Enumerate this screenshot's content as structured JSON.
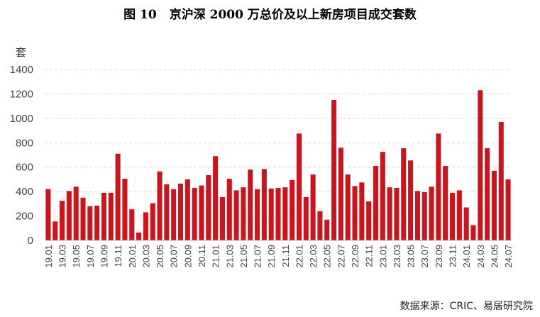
{
  "title": {
    "number": "图 10",
    "text": "京沪深 2000 万总价及以上新房项目成交套数"
  },
  "source": "数据来源：CRIC、易居研究院",
  "colors": {
    "bar": "#c8161e",
    "grid": "#d9d9d9",
    "axis": "#bfbfbf"
  },
  "chart_data": {
    "type": "bar",
    "title": "京沪深 2000 万总价及以上新房项目成交套数",
    "ylabel": "套",
    "xlabel": "",
    "ylim": [
      0,
      1400
    ],
    "yticks": [
      0,
      200,
      400,
      600,
      800,
      1000,
      1200,
      1400
    ],
    "grid": true,
    "legend": "none",
    "categories": [
      "19.01",
      "19.02",
      "19.03",
      "19.04",
      "19.05",
      "19.06",
      "19.07",
      "19.08",
      "19.09",
      "19.10",
      "19.11",
      "19.12",
      "20.01",
      "20.02",
      "20.03",
      "20.04",
      "20.05",
      "20.06",
      "20.07",
      "20.08",
      "20.09",
      "20.10",
      "20.11",
      "20.12",
      "21.01",
      "21.02",
      "21.03",
      "21.04",
      "21.05",
      "21.06",
      "21.07",
      "21.08",
      "21.09",
      "21.10",
      "21.11",
      "21.12",
      "22.01",
      "22.02",
      "22.03",
      "22.04",
      "22.05",
      "22.06",
      "22.07",
      "22.08",
      "22.09",
      "22.10",
      "22.11",
      "22.12",
      "23.01",
      "23.02",
      "23.03",
      "23.04",
      "23.05",
      "23.06",
      "23.07",
      "23.08",
      "23.09",
      "23.10",
      "23.11",
      "23.12",
      "24.01",
      "24.02",
      "24.03",
      "24.04",
      "24.05",
      "24.06",
      "24.07"
    ],
    "xtick_labels": [
      "19.01",
      "19.03",
      "19.05",
      "19.07",
      "19.09",
      "19.11",
      "20.01",
      "20.03",
      "20.05",
      "20.07",
      "20.09",
      "20.11",
      "21.01",
      "21.03",
      "21.05",
      "21.07",
      "21.09",
      "21.11",
      "22.01",
      "22.03",
      "22.05",
      "22.07",
      "22.09",
      "22.11",
      "23.01",
      "23.03",
      "23.05",
      "23.07",
      "23.09",
      "23.11",
      "24.01",
      "24.03",
      "24.05",
      "24.07"
    ],
    "values": [
      420,
      155,
      325,
      405,
      440,
      350,
      280,
      285,
      390,
      390,
      710,
      505,
      255,
      65,
      230,
      305,
      565,
      460,
      420,
      465,
      500,
      430,
      450,
      535,
      690,
      355,
      505,
      410,
      435,
      580,
      420,
      585,
      425,
      430,
      435,
      495,
      875,
      355,
      540,
      240,
      170,
      1150,
      760,
      540,
      445,
      475,
      320,
      610,
      725,
      435,
      430,
      755,
      655,
      405,
      395,
      440,
      875,
      610,
      390,
      410,
      270,
      125,
      1230,
      755,
      570,
      970,
      500
    ]
  }
}
